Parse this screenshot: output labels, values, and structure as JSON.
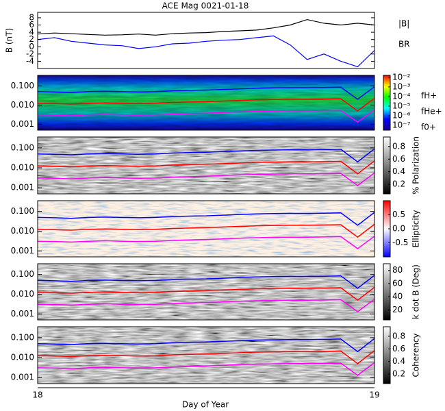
{
  "figure": {
    "title": "ACE Mag 0021-01-18",
    "x_label": "Day of Year",
    "xlim": [
      18,
      19
    ],
    "xticks": [
      18,
      19
    ],
    "x": [
      18.0,
      18.05,
      18.1,
      18.15,
      18.2,
      18.25,
      18.3,
      18.35,
      18.4,
      18.45,
      18.5,
      18.55,
      18.6,
      18.65,
      18.7,
      18.75,
      18.8,
      18.85,
      18.9,
      18.95,
      19.0
    ],
    "lines": [
      {
        "name": "fH+",
        "color": "#0000ff",
        "values": [
          0.05,
          0.048,
          0.045,
          0.05,
          0.052,
          0.05,
          0.048,
          0.05,
          0.055,
          0.058,
          0.06,
          0.065,
          0.07,
          0.075,
          0.078,
          0.08,
          0.08,
          0.082,
          0.085,
          0.02,
          0.09
        ]
      },
      {
        "name": "fHe+",
        "color": "#ff0000",
        "values": [
          0.0125,
          0.012,
          0.0113,
          0.0125,
          0.013,
          0.0125,
          0.012,
          0.0125,
          0.0138,
          0.0145,
          0.015,
          0.0163,
          0.0175,
          0.0188,
          0.0195,
          0.02,
          0.02,
          0.0205,
          0.0213,
          0.005,
          0.0225
        ]
      },
      {
        "name": "f0+",
        "color": "#ff00ff",
        "values": [
          0.0031,
          0.003,
          0.0028,
          0.0031,
          0.0033,
          0.0031,
          0.003,
          0.0031,
          0.0034,
          0.0036,
          0.0038,
          0.0041,
          0.0044,
          0.0047,
          0.0049,
          0.005,
          0.005,
          0.0051,
          0.0053,
          0.0013,
          0.0056
        ]
      }
    ]
  },
  "chart_data": [
    {
      "type": "line",
      "y_label": "B (nT)",
      "ylim": [
        -6,
        9.5
      ],
      "yticks": [
        -4,
        -2,
        0,
        2,
        4,
        6,
        8
      ],
      "series": [
        {
          "name": "|B|",
          "color": "#000000",
          "values": [
            3.5,
            3.8,
            3.6,
            3.4,
            3.2,
            3.3,
            3.5,
            3.2,
            3.6,
            3.8,
            3.9,
            4.2,
            4.4,
            4.6,
            5.2,
            6.0,
            7.5,
            6.5,
            6.0,
            6.5,
            6.0
          ]
        },
        {
          "name": "BR",
          "color": "#0000ff",
          "values": [
            2.0,
            2.5,
            1.5,
            1.0,
            0.5,
            0.3,
            -0.5,
            0.0,
            0.8,
            1.0,
            1.5,
            1.8,
            2.0,
            2.5,
            3.0,
            0.5,
            -3.5,
            -2.0,
            -4.0,
            -5.5,
            -1.0
          ]
        }
      ]
    },
    {
      "type": "spectrogram",
      "background": "rainbow",
      "ylim": [
        0.0005,
        0.35
      ],
      "log_y": true,
      "legend": true,
      "yticks": [
        0.001,
        {
          "value": 0.01,
          "label": "0.010"
        },
        {
          "value": 0.1,
          "label": "0.100"
        }
      ],
      "colorbar": {
        "lim": [
          -7.5,
          -1.8
        ],
        "colors": [
          "#1a0090",
          "#0000ff",
          "#00ffff",
          "#00ff00",
          "#ffff00",
          "#ff0000"
        ],
        "ticks": [
          {
            "value": -7,
            "label": "10⁻⁷"
          },
          {
            "value": -6,
            "label": "10⁻⁶"
          },
          {
            "value": -5,
            "label": "10⁻⁵"
          },
          {
            "value": -4,
            "label": "10⁻⁴"
          },
          {
            "value": -3,
            "label": "10⁻³"
          },
          {
            "value": -2,
            "label": "10⁻²"
          }
        ]
      }
    },
    {
      "type": "spectrogram",
      "background": "gray",
      "ylim": [
        0.0005,
        0.35
      ],
      "log_y": true,
      "yticks": [
        0.001,
        {
          "value": 0.01,
          "label": "0.010"
        },
        {
          "value": 0.1,
          "label": "0.100"
        }
      ],
      "colorbar": {
        "label": "% Polarization",
        "lim": [
          0.05,
          0.95
        ],
        "colors": [
          "#000000",
          "#ffffff"
        ],
        "ticks": [
          0.2,
          0.4,
          0.6,
          0.8
        ]
      }
    },
    {
      "type": "spectrogram",
      "background": "diverging",
      "ylim": [
        0.0005,
        0.35
      ],
      "log_y": true,
      "yticks": [
        0.001,
        {
          "value": 0.01,
          "label": "0.010"
        },
        {
          "value": 0.1,
          "label": "0.100"
        }
      ],
      "colorbar": {
        "label": "Ellipticity",
        "lim": [
          -1,
          1
        ],
        "colors": [
          "#0000ff",
          "#ffffff",
          "#ff0000"
        ],
        "ticks": [
          -0.5,
          {
            "value": 0,
            "label": "0.0"
          },
          0.5
        ]
      }
    },
    {
      "type": "spectrogram",
      "background": "gray",
      "ylim": [
        0.0005,
        0.35
      ],
      "log_y": true,
      "yticks": [
        0.001,
        {
          "value": 0.01,
          "label": "0.010"
        },
        {
          "value": 0.1,
          "label": "0.100"
        }
      ],
      "colorbar": {
        "label": "k dot B (Deg)",
        "lim": [
          5,
          90
        ],
        "colors": [
          "#000000",
          "#ffffff"
        ],
        "ticks": [
          20,
          40,
          60,
          80
        ]
      }
    },
    {
      "type": "spectrogram",
      "background": "gray",
      "ylim": [
        0.0005,
        0.35
      ],
      "log_y": true,
      "yticks": [
        0.001,
        {
          "value": 0.01,
          "label": "0.010"
        },
        {
          "value": 0.1,
          "label": "0.100"
        }
      ],
      "colorbar": {
        "label": "Coherency",
        "lim": [
          0.05,
          0.95
        ],
        "colors": [
          "#000000",
          "#ffffff"
        ],
        "ticks": [
          0.2,
          0.4,
          0.6,
          0.8
        ]
      }
    }
  ]
}
